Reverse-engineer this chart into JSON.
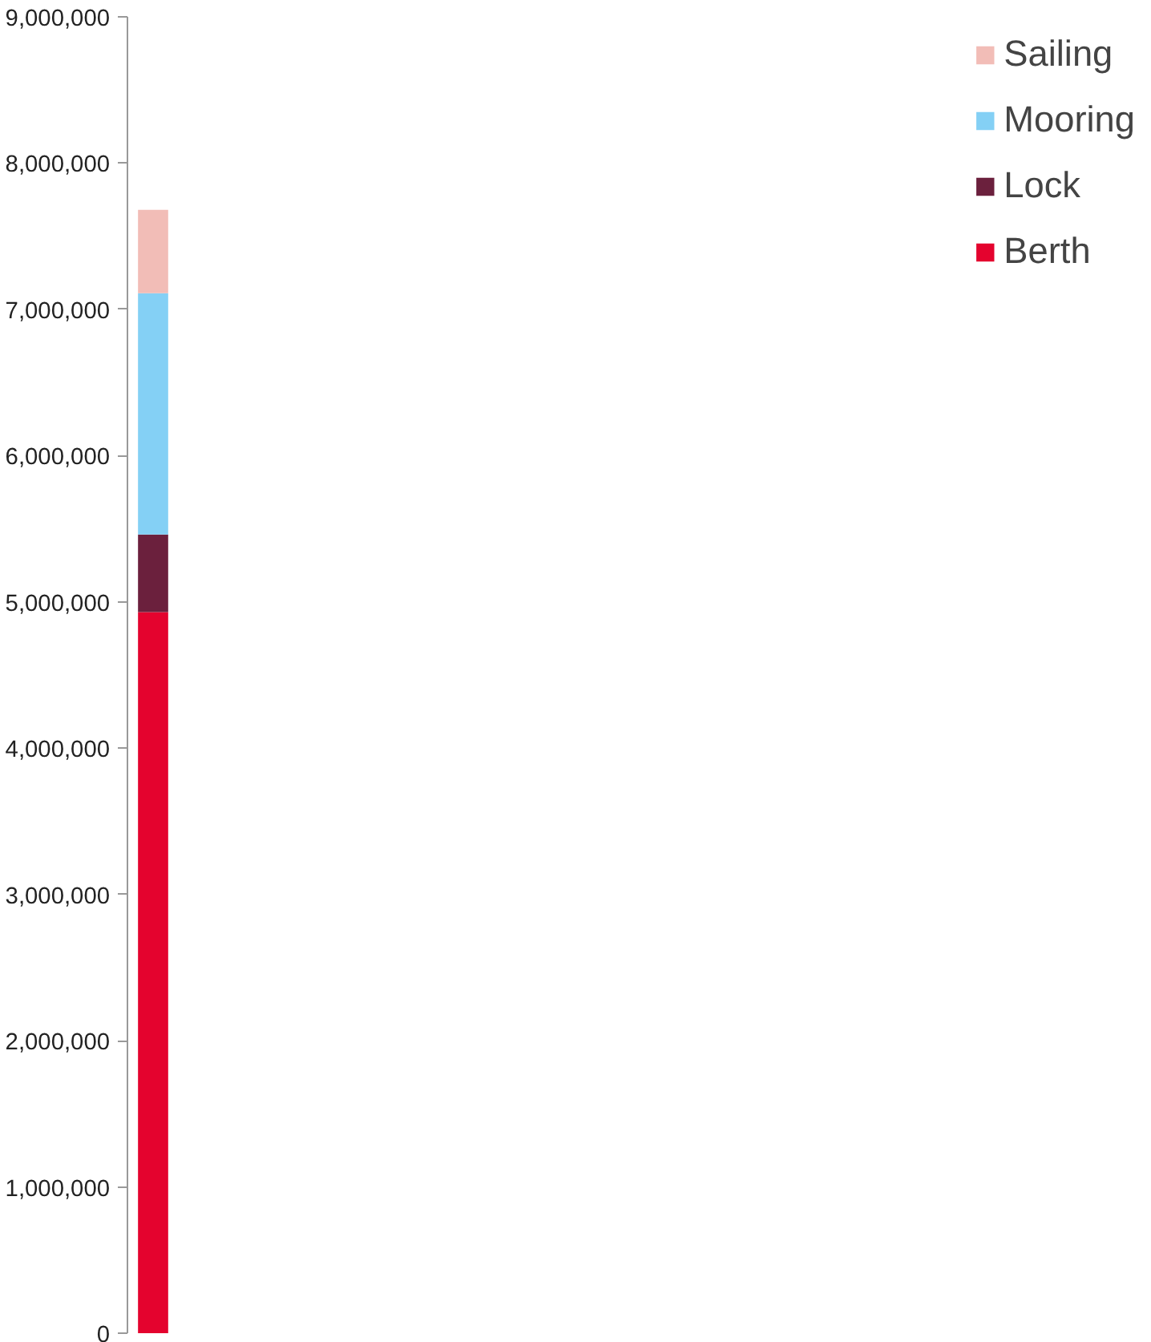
{
  "chart_data": {
    "type": "bar",
    "stacked": true,
    "categories": [
      null
    ],
    "series": [
      {
        "name": "Berth",
        "color": "#e4032e",
        "values": [
          4930000
        ]
      },
      {
        "name": "Lock",
        "color": "#6b203d",
        "values": [
          530000
        ]
      },
      {
        "name": "Mooring",
        "color": "#84d0f5",
        "values": [
          1650000
        ]
      },
      {
        "name": "Sailing",
        "color": "#f2bdb7",
        "values": [
          570000
        ]
      }
    ],
    "ylim": [
      0,
      9000000
    ],
    "yticks": [
      {
        "value": 0,
        "label": "0"
      },
      {
        "value": 1000000,
        "label": "1,000,000"
      },
      {
        "value": 2000000,
        "label": "2,000,000"
      },
      {
        "value": 3000000,
        "label": "3,000,000"
      },
      {
        "value": 4000000,
        "label": "4,000,000"
      },
      {
        "value": 5000000,
        "label": "5,000,000"
      },
      {
        "value": 6000000,
        "label": "6,000,000"
      },
      {
        "value": 7000000,
        "label": "7,000,000"
      },
      {
        "value": 8000000,
        "label": "8,000,000"
      },
      {
        "value": 9000000,
        "label": "9,000,000"
      }
    ],
    "grid": false,
    "legend": "right"
  }
}
